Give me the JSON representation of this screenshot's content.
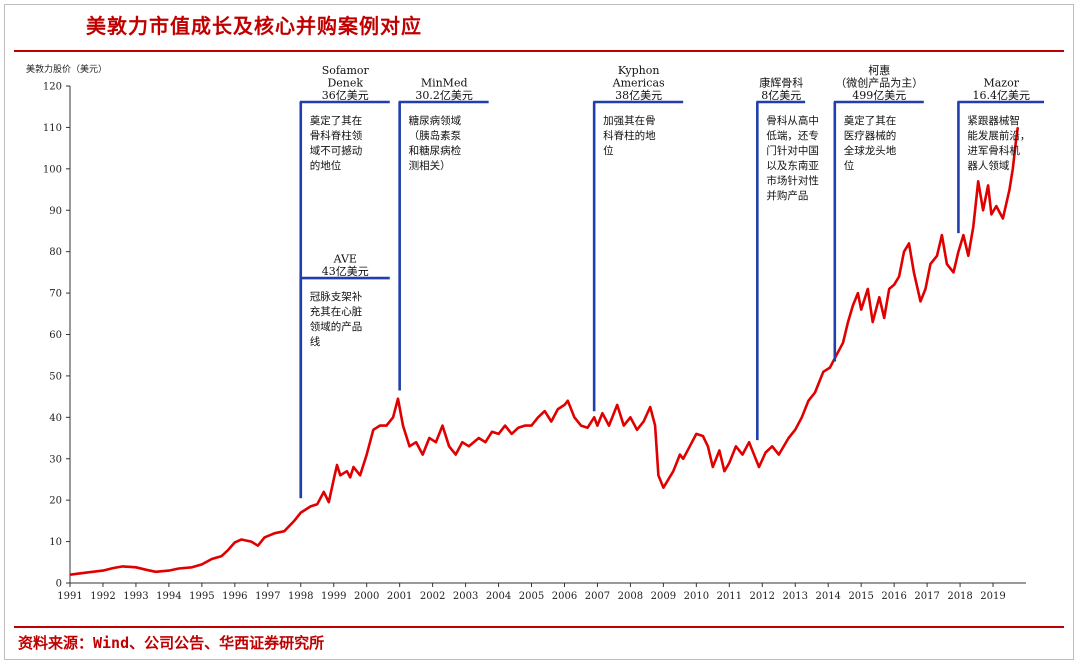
{
  "title": "美敦力市值成长及核心并购案例对应",
  "source": "资料来源：Wind、公司公告、华西证券研究所",
  "colors": {
    "accent": "#c00000",
    "line": "#e00000",
    "annotation": "#1f3fae"
  },
  "chart_data": {
    "type": "line",
    "ylabel": "美敦力股价（美元）",
    "xlabel": "",
    "xlim": [
      1991,
      2020
    ],
    "ylim": [
      0,
      120
    ],
    "yticks": [
      0,
      10,
      20,
      30,
      40,
      50,
      60,
      70,
      80,
      90,
      100,
      110,
      120
    ],
    "xticks": [
      "1991",
      "1992",
      "1993",
      "1994",
      "1995",
      "1996",
      "1997",
      "1998",
      "1999",
      "2000",
      "2001",
      "2002",
      "2003",
      "2004",
      "2005",
      "2006",
      "2007",
      "2008",
      "2009",
      "2010",
      "2011",
      "2012",
      "2013",
      "2014",
      "2015",
      "2016",
      "2017",
      "2018",
      "2019"
    ],
    "grid": false,
    "series": [
      {
        "values": [
          [
            1991.0,
            2
          ],
          [
            1991.5,
            2.5
          ],
          [
            1992.0,
            3
          ],
          [
            1992.3,
            3.6
          ],
          [
            1992.6,
            4
          ],
          [
            1993.0,
            3.8
          ],
          [
            1993.3,
            3.2
          ],
          [
            1993.6,
            2.7
          ],
          [
            1994.0,
            3
          ],
          [
            1994.3,
            3.5
          ],
          [
            1994.7,
            3.8
          ],
          [
            1995.0,
            4.5
          ],
          [
            1995.3,
            5.8
          ],
          [
            1995.6,
            6.5
          ],
          [
            1995.8,
            8
          ],
          [
            1996.0,
            9.8
          ],
          [
            1996.2,
            10.5
          ],
          [
            1996.5,
            10
          ],
          [
            1996.7,
            9
          ],
          [
            1996.9,
            11
          ],
          [
            1997.2,
            12
          ],
          [
            1997.5,
            12.5
          ],
          [
            1997.8,
            15
          ],
          [
            1998.0,
            17
          ],
          [
            1998.3,
            18.5
          ],
          [
            1998.5,
            19
          ],
          [
            1998.7,
            22
          ],
          [
            1998.85,
            19.5
          ],
          [
            1999.0,
            25
          ],
          [
            1999.1,
            28.5
          ],
          [
            1999.2,
            26
          ],
          [
            1999.4,
            27
          ],
          [
            1999.5,
            25.5
          ],
          [
            1999.6,
            28
          ],
          [
            1999.8,
            26
          ],
          [
            2000.0,
            31
          ],
          [
            2000.2,
            37
          ],
          [
            2000.4,
            38
          ],
          [
            2000.6,
            38
          ],
          [
            2000.8,
            40
          ],
          [
            2000.95,
            44.5
          ],
          [
            2001.1,
            38
          ],
          [
            2001.3,
            33
          ],
          [
            2001.5,
            34
          ],
          [
            2001.7,
            31
          ],
          [
            2001.9,
            35
          ],
          [
            2002.1,
            34
          ],
          [
            2002.3,
            38
          ],
          [
            2002.5,
            33
          ],
          [
            2002.7,
            31
          ],
          [
            2002.9,
            34
          ],
          [
            2003.1,
            33
          ],
          [
            2003.4,
            35
          ],
          [
            2003.6,
            34
          ],
          [
            2003.8,
            36.5
          ],
          [
            2004.0,
            36
          ],
          [
            2004.2,
            38
          ],
          [
            2004.4,
            36
          ],
          [
            2004.6,
            37.5
          ],
          [
            2004.8,
            38
          ],
          [
            2005.0,
            38
          ],
          [
            2005.2,
            40
          ],
          [
            2005.4,
            41.5
          ],
          [
            2005.6,
            39
          ],
          [
            2005.8,
            42
          ],
          [
            2006.0,
            43
          ],
          [
            2006.1,
            44
          ],
          [
            2006.3,
            40
          ],
          [
            2006.5,
            38
          ],
          [
            2006.7,
            37.5
          ],
          [
            2006.9,
            40
          ],
          [
            2007.0,
            38
          ],
          [
            2007.15,
            41
          ],
          [
            2007.35,
            38
          ],
          [
            2007.6,
            43
          ],
          [
            2007.8,
            38
          ],
          [
            2008.0,
            40
          ],
          [
            2008.2,
            37
          ],
          [
            2008.4,
            39
          ],
          [
            2008.6,
            42.5
          ],
          [
            2008.75,
            38
          ],
          [
            2008.85,
            26
          ],
          [
            2009.0,
            23
          ],
          [
            2009.15,
            25
          ],
          [
            2009.3,
            27
          ],
          [
            2009.5,
            31
          ],
          [
            2009.6,
            30
          ],
          [
            2009.8,
            33
          ],
          [
            2010.0,
            36
          ],
          [
            2010.2,
            35.5
          ],
          [
            2010.35,
            33
          ],
          [
            2010.5,
            28
          ],
          [
            2010.7,
            32
          ],
          [
            2010.85,
            27
          ],
          [
            2011.0,
            29
          ],
          [
            2011.2,
            33
          ],
          [
            2011.4,
            31
          ],
          [
            2011.6,
            34
          ],
          [
            2011.8,
            30
          ],
          [
            2011.9,
            28
          ],
          [
            2012.1,
            31.5
          ],
          [
            2012.3,
            33
          ],
          [
            2012.5,
            31
          ],
          [
            2012.8,
            35
          ],
          [
            2013.0,
            37
          ],
          [
            2013.2,
            40
          ],
          [
            2013.4,
            44
          ],
          [
            2013.6,
            46
          ],
          [
            2013.85,
            51
          ],
          [
            2014.05,
            52
          ],
          [
            2014.25,
            55
          ],
          [
            2014.45,
            58
          ],
          [
            2014.6,
            63
          ],
          [
            2014.75,
            67
          ],
          [
            2014.9,
            70
          ],
          [
            2015.0,
            66
          ],
          [
            2015.2,
            71
          ],
          [
            2015.35,
            63
          ],
          [
            2015.55,
            69
          ],
          [
            2015.7,
            64
          ],
          [
            2015.85,
            71
          ],
          [
            2016.0,
            72
          ],
          [
            2016.15,
            74
          ],
          [
            2016.3,
            80
          ],
          [
            2016.45,
            82
          ],
          [
            2016.6,
            75
          ],
          [
            2016.8,
            68
          ],
          [
            2016.95,
            71
          ],
          [
            2017.1,
            77
          ],
          [
            2017.3,
            79
          ],
          [
            2017.45,
            84
          ],
          [
            2017.6,
            77
          ],
          [
            2017.8,
            75
          ],
          [
            2017.95,
            80
          ],
          [
            2018.1,
            84
          ],
          [
            2018.25,
            79
          ],
          [
            2018.4,
            86
          ],
          [
            2018.55,
            97
          ],
          [
            2018.7,
            90
          ],
          [
            2018.85,
            96
          ],
          [
            2018.95,
            89
          ],
          [
            2019.1,
            91
          ],
          [
            2019.3,
            88
          ],
          [
            2019.5,
            95
          ],
          [
            2019.6,
            100
          ],
          [
            2019.7,
            107
          ],
          [
            2019.75,
            110
          ]
        ]
      }
    ],
    "annotations": [
      {
        "x": 1998.0,
        "y": 20,
        "line_top": 120,
        "bar_to": 2000.7,
        "title": [
          "Sofamor",
          "Denek",
          "36亿美元"
        ],
        "desc": [
          "奠定了其在",
          "骨科脊柱领",
          "域不可撼动",
          "的地位"
        ]
      },
      {
        "x": 1998.0,
        "y": 20,
        "line_top": 77.5,
        "bar_to": 2000.7,
        "title": [
          "AVE",
          "43亿美元"
        ],
        "desc": [
          "冠脉支架补",
          "充其在心脏",
          "领域的产品",
          "线"
        ]
      },
      {
        "x": 2001.0,
        "y": 46,
        "line_top": 120,
        "bar_to": 2003.7,
        "title": [
          "MinMed",
          "30.2亿美元"
        ],
        "desc": [
          "糖尿病领域",
          "（胰岛素泵",
          "和糖尿病检",
          "测相关）"
        ]
      },
      {
        "x": 2006.9,
        "y": 41,
        "line_top": 120,
        "bar_to": 2009.6,
        "title": [
          "Kyphon",
          "Americas",
          "38亿美元"
        ],
        "desc": [
          "加强其在骨",
          "科脊柱的地",
          "位"
        ]
      },
      {
        "x": 2011.85,
        "y": 34,
        "line_top": 120,
        "bar_to": 2013.3,
        "title": [
          "康辉骨科",
          "8亿美元"
        ],
        "desc": [
          "骨科从高中",
          "低端，还专",
          "门针对中国",
          "以及东南亚",
          "市场针对性",
          "并购产品"
        ]
      },
      {
        "x": 2014.2,
        "y": 53,
        "line_top": 120,
        "bar_to": 2016.9,
        "title": [
          "柯惠",
          "（微创产品为主）",
          "499亿美元"
        ],
        "desc": [
          "奠定了其在",
          "医疗器械的",
          "全球龙头地",
          "位"
        ]
      },
      {
        "x": 2017.95,
        "y": 84,
        "line_top": 120,
        "bar_to": 2021.4,
        "title": [
          "Mazor",
          "16.4亿美元"
        ],
        "desc": [
          "紧跟器械智",
          "能发展前沿，",
          "进军骨科机",
          "器人领域"
        ]
      }
    ]
  }
}
